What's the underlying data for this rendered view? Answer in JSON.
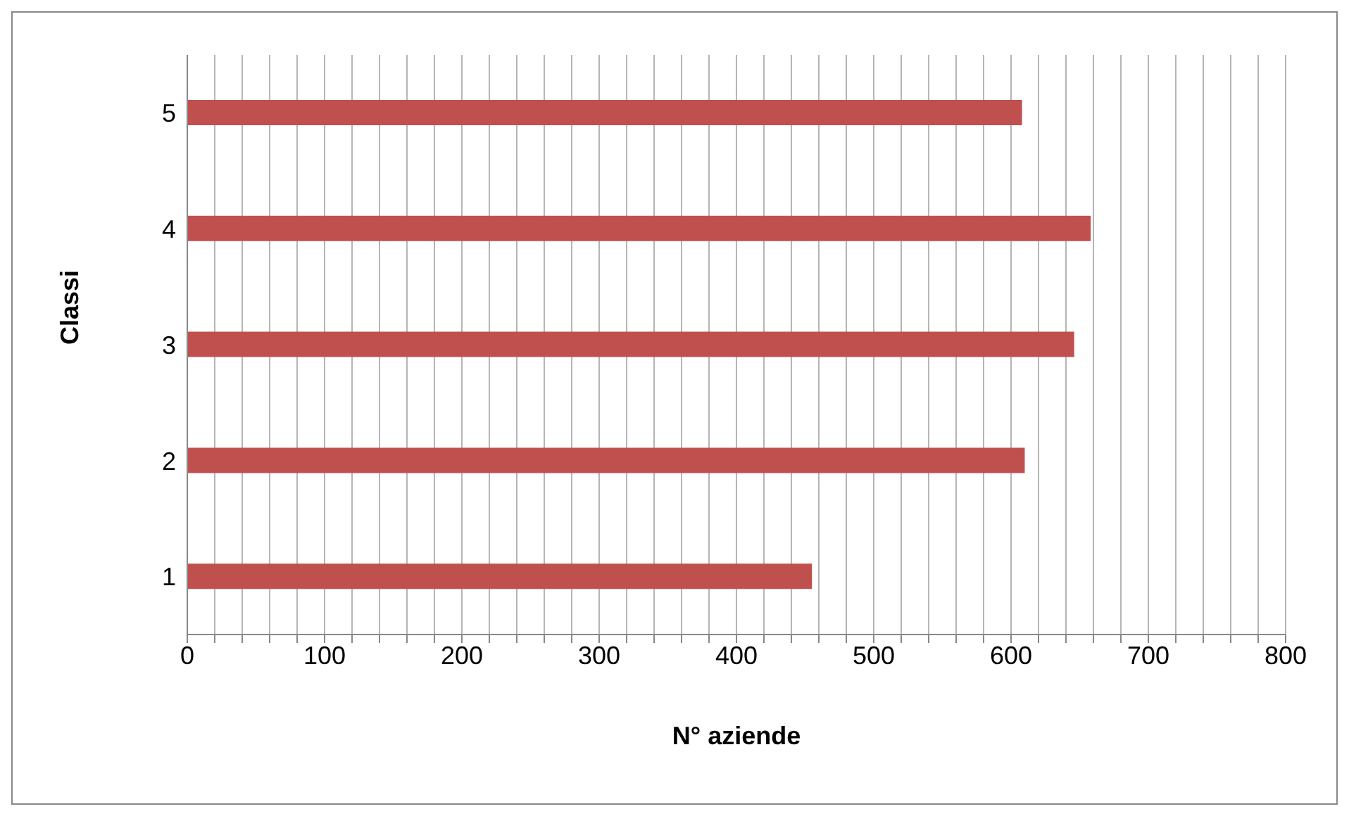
{
  "chart_data": {
    "type": "bar",
    "orientation": "horizontal",
    "xlabel": "N° aziende",
    "ylabel": "Classi",
    "categories": [
      "5",
      "4",
      "3",
      "2",
      "1"
    ],
    "values": [
      608,
      658,
      646,
      610,
      455
    ],
    "color": "#c0504d",
    "xlim": [
      0,
      800
    ],
    "xticks": [
      0,
      {
        "value": 20,
        "label": null
      },
      {
        "value": 40,
        "label": null
      },
      {
        "value": 60,
        "label": null
      },
      {
        "value": 80,
        "label": null
      },
      100,
      {
        "value": 120,
        "label": null
      },
      {
        "value": 140,
        "label": null
      },
      {
        "value": 160,
        "label": null
      },
      {
        "value": 180,
        "label": null
      },
      200,
      {
        "value": 220,
        "label": null
      },
      {
        "value": 240,
        "label": null
      },
      {
        "value": 260,
        "label": null
      },
      {
        "value": 280,
        "label": null
      },
      300,
      {
        "value": 320,
        "label": null
      },
      {
        "value": 340,
        "label": null
      },
      {
        "value": 360,
        "label": null
      },
      {
        "value": 380,
        "label": null
      },
      400,
      {
        "value": 420,
        "label": null
      },
      {
        "value": 440,
        "label": null
      },
      {
        "value": 460,
        "label": null
      },
      {
        "value": 480,
        "label": null
      },
      500,
      {
        "value": 520,
        "label": null
      },
      {
        "value": 540,
        "label": null
      },
      {
        "value": 560,
        "label": null
      },
      {
        "value": 580,
        "label": null
      },
      600,
      {
        "value": 620,
        "label": null
      },
      {
        "value": 640,
        "label": null
      },
      {
        "value": 660,
        "label": null
      },
      {
        "value": 680,
        "label": null
      },
      700,
      {
        "value": 720,
        "label": null
      },
      {
        "value": 740,
        "label": null
      },
      {
        "value": 760,
        "label": null
      },
      {
        "value": 780,
        "label": null
      },
      800
    ],
    "grid": "x",
    "legend": false
  }
}
